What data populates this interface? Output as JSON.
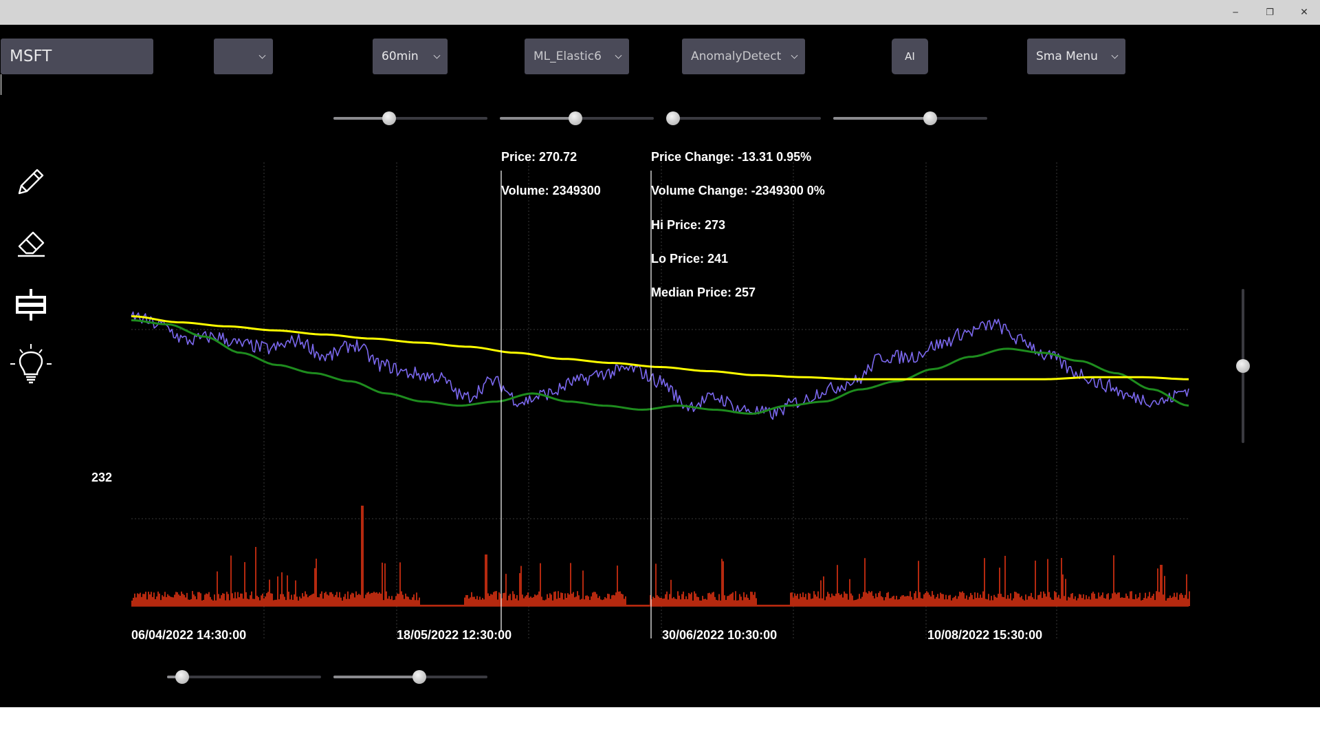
{
  "window": {
    "minimize_glyph": "─",
    "restore_glyph": "❐",
    "close_glyph": "✕"
  },
  "toolbar": {
    "symbol": "MSFT",
    "blank_dropdown": "",
    "interval": "60min",
    "model": "ML_Elastic6",
    "detector": "AnomalyDetect",
    "ai_label": "AI",
    "sma_menu": "Sma Menu"
  },
  "sliders": {
    "top": [
      0.36,
      0.49,
      0.04,
      0.63
    ],
    "bottom": [
      0.1,
      0.56
    ],
    "vertical": 0.5
  },
  "tools": [
    "pencil-icon",
    "eraser-icon",
    "candlestick-icon",
    "lightbulb-icon"
  ],
  "info": {
    "price": "Price: 270.72",
    "volume": "Volume: 2349300",
    "price_change": "Price Change: -13.31 0.95%",
    "volume_change": "Volume Change: -2349300 0%",
    "hi_price": "Hi Price: 273",
    "lo_price": "Lo Price: 241",
    "median_price": "Median Price: 257"
  },
  "axis": {
    "y_label": "232"
  },
  "chart_data": {
    "type": "line",
    "x_tick_labels": [
      "06/04/2022 14:30:00",
      "18/05/2022 12:30:00",
      "30/06/2022 10:30:00",
      "10/08/2022 15:30:00"
    ],
    "series": [
      {
        "color": "#7b68ee",
        "values": [
          272,
          270,
          266,
          267,
          265,
          264,
          266,
          262,
          265,
          260,
          258,
          257,
          252,
          256,
          251,
          253,
          256,
          258,
          259,
          256,
          250,
          252,
          249,
          248,
          251,
          254,
          256,
          262,
          262,
          265,
          268,
          270,
          266,
          262,
          258,
          255,
          252,
          251,
          254
        ]
      },
      {
        "color": "#1e8c1e",
        "values": [
          271,
          270,
          267,
          263,
          260,
          258,
          256,
          253,
          251,
          250,
          251,
          253,
          251,
          250,
          249,
          250,
          249,
          248,
          250,
          251,
          254,
          256,
          259,
          262,
          264,
          263,
          261,
          258,
          254,
          250
        ]
      },
      {
        "color": "#ffff00",
        "values": [
          272,
          270.5,
          269.5,
          268.5,
          267.5,
          266.5,
          265.5,
          264.5,
          263,
          261.5,
          260.5,
          259.5,
          258.5,
          257.5,
          257,
          256.5,
          256.5,
          256.5,
          256.5,
          256.5,
          257,
          257,
          256.5
        ]
      }
    ],
    "volume": {
      "color": "#b5290f"
    },
    "colors": {
      "background": "#000000",
      "grid": "#3a3a3a",
      "crosshair": "#ffffff"
    }
  }
}
